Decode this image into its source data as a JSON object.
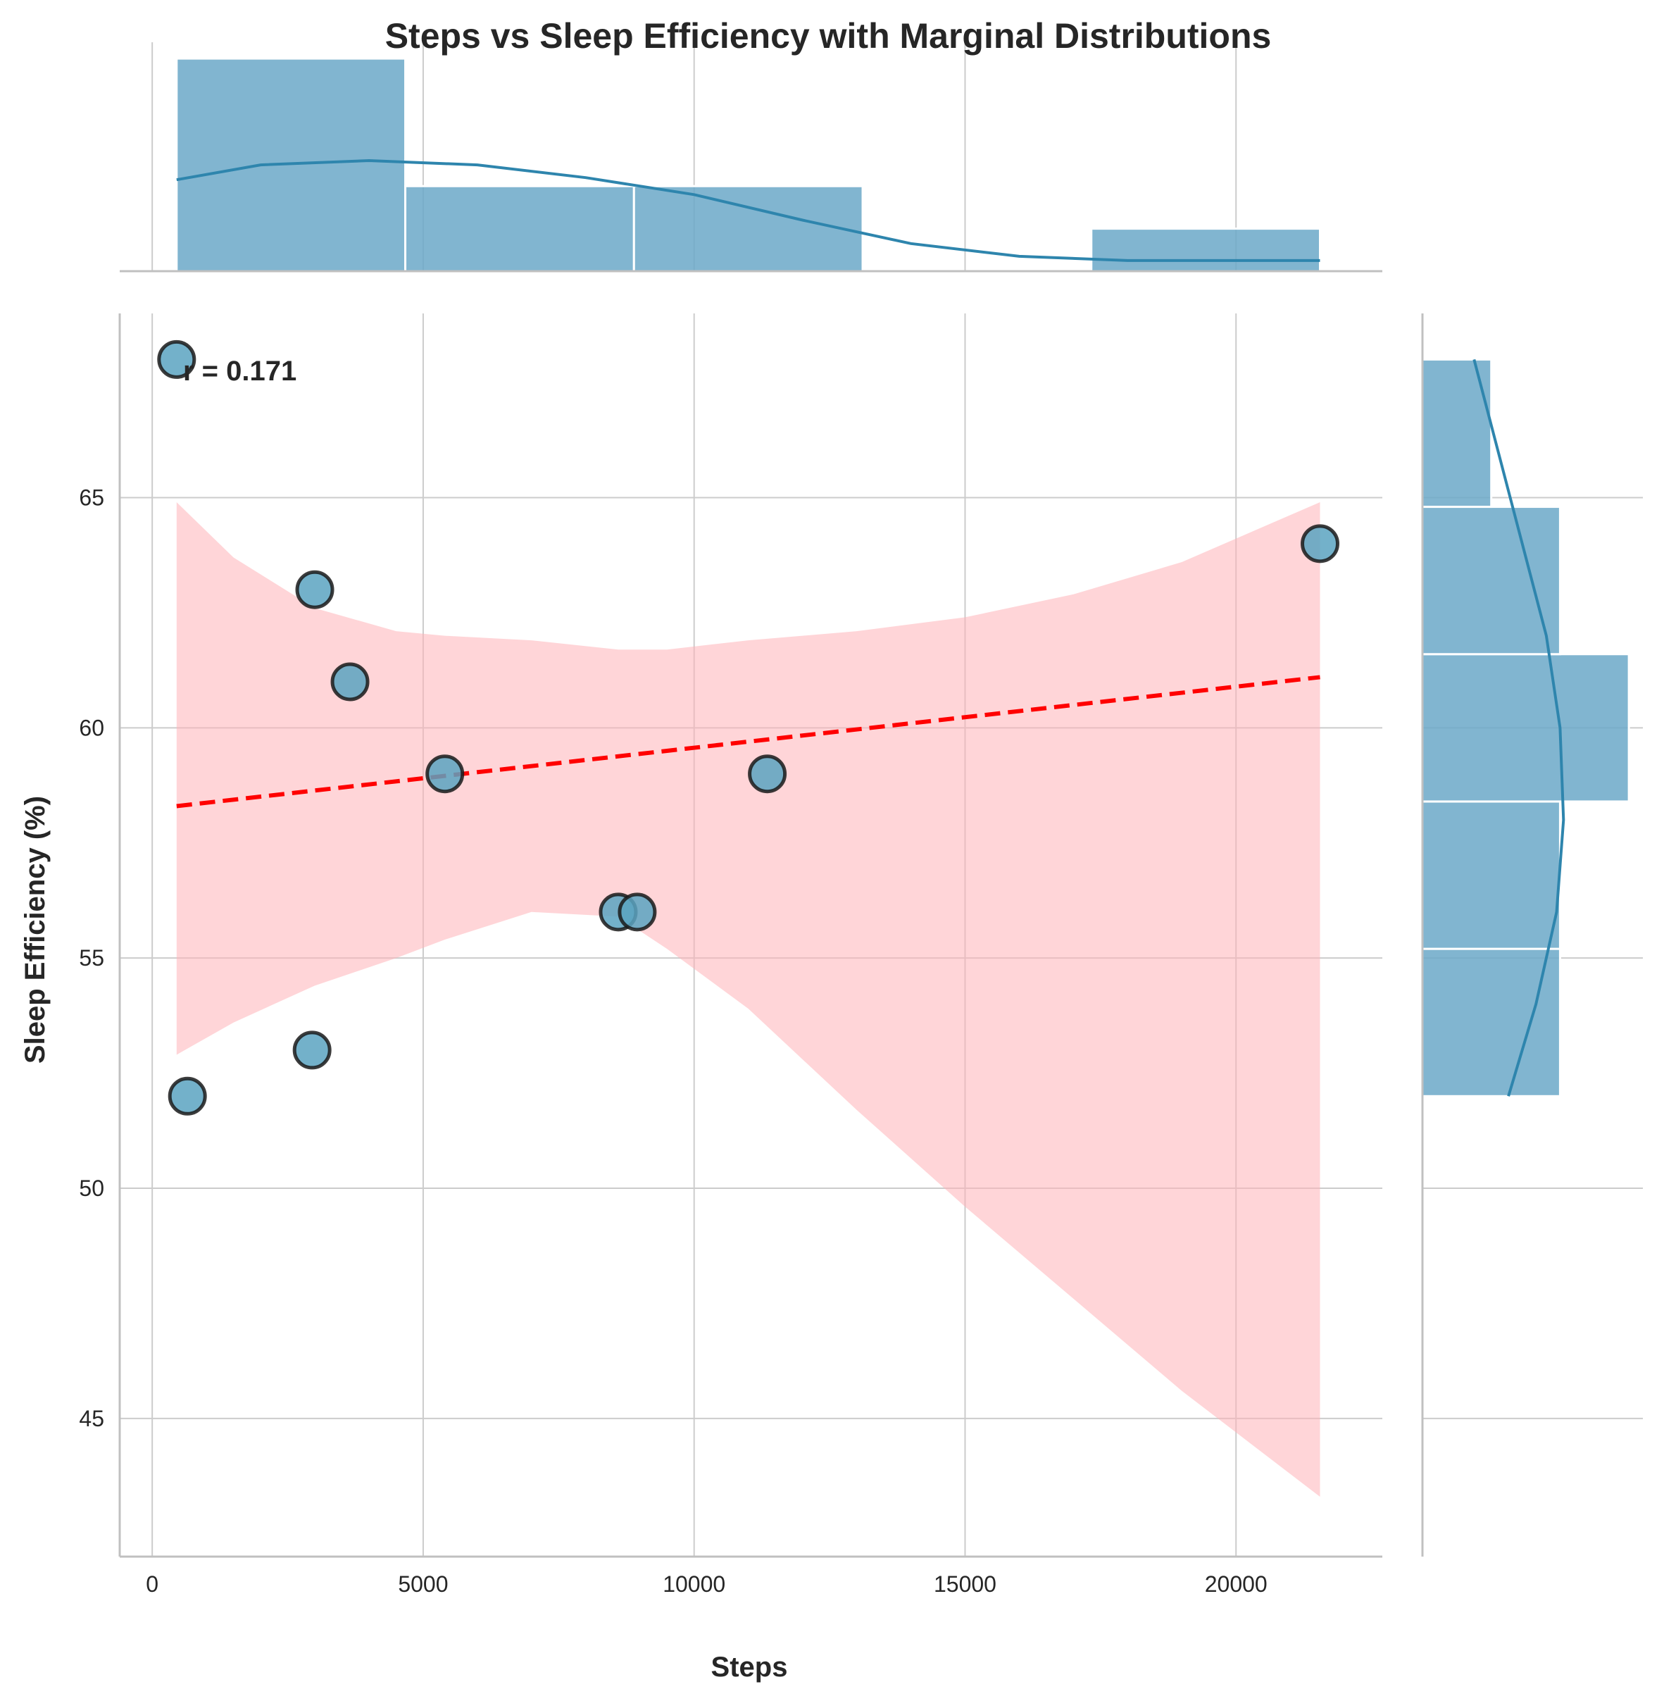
{
  "chart_data": {
    "type": "scatter",
    "title": "Steps vs Sleep Efficiency with Marginal Distributions",
    "xlabel": "Steps",
    "ylabel": "Sleep Efficiency (%)",
    "annotation": "r = 0.171",
    "xlim": [
      -600,
      22700
    ],
    "ylim": [
      42,
      69
    ],
    "x_ticks": [
      0,
      5000,
      10000,
      15000,
      20000
    ],
    "y_ticks": [
      45,
      50,
      55,
      60,
      65
    ],
    "grid": true,
    "points": [
      {
        "x": 450,
        "y": 68
      },
      {
        "x": 650,
        "y": 52
      },
      {
        "x": 2950,
        "y": 53
      },
      {
        "x": 3000,
        "y": 63
      },
      {
        "x": 3650,
        "y": 61
      },
      {
        "x": 5400,
        "y": 59
      },
      {
        "x": 8600,
        "y": 56
      },
      {
        "x": 8950,
        "y": 56
      },
      {
        "x": 11350,
        "y": 59
      },
      {
        "x": 21550,
        "y": 64
      }
    ],
    "regression": {
      "x": [
        450,
        21550
      ],
      "y": [
        58.3,
        61.1
      ]
    },
    "confidence_band": {
      "x": [
        450,
        1500,
        3000,
        4500,
        5400,
        7000,
        8600,
        9500,
        11000,
        13000,
        15000,
        17000,
        19000,
        21550
      ],
      "upper": [
        64.9,
        63.7,
        62.6,
        62.1,
        62.0,
        61.9,
        61.7,
        61.7,
        61.9,
        62.1,
        62.4,
        62.9,
        63.6,
        64.9
      ],
      "lower": [
        52.9,
        53.6,
        54.4,
        55.0,
        55.4,
        56.0,
        55.9,
        55.2,
        53.9,
        51.7,
        49.6,
        47.6,
        45.6,
        43.3
      ]
    },
    "top_histogram": {
      "bins": [
        [
          450,
          4670
        ],
        [
          4670,
          8890
        ],
        [
          8890,
          13110
        ],
        [
          13110,
          17330
        ],
        [
          17330,
          21550
        ]
      ],
      "counts": [
        5,
        2,
        2,
        0,
        1
      ],
      "kde_x": [
        450,
        2000,
        4000,
        6000,
        8000,
        10000,
        12000,
        14000,
        16000,
        18000,
        20000,
        21550
      ],
      "kde_y": [
        2.15,
        2.5,
        2.6,
        2.5,
        2.2,
        1.8,
        1.2,
        0.65,
        0.35,
        0.25,
        0.25,
        0.25
      ]
    },
    "right_histogram": {
      "bins": [
        [
          52,
          55.2
        ],
        [
          55.2,
          58.4
        ],
        [
          58.4,
          61.6
        ],
        [
          61.6,
          64.8
        ],
        [
          64.8,
          68
        ]
      ],
      "counts": [
        2,
        2,
        3,
        2,
        1
      ],
      "kde_y": [
        52,
        54,
        56,
        58,
        60,
        62,
        64,
        66,
        68
      ],
      "kde_x": [
        1.25,
        1.65,
        1.95,
        2.05,
        2.0,
        1.8,
        1.45,
        1.1,
        0.75
      ]
    },
    "colors": {
      "marker_fill": "#5ba3c1",
      "marker_edge": "#1a1a1a",
      "hist_fill": "#6ba8c8",
      "kde_line": "#2e85ad",
      "regression_line": "#ff0000",
      "band_fill": "#ffb3b8",
      "grid": "#cccccc",
      "spine": "#c0c0c0"
    }
  }
}
